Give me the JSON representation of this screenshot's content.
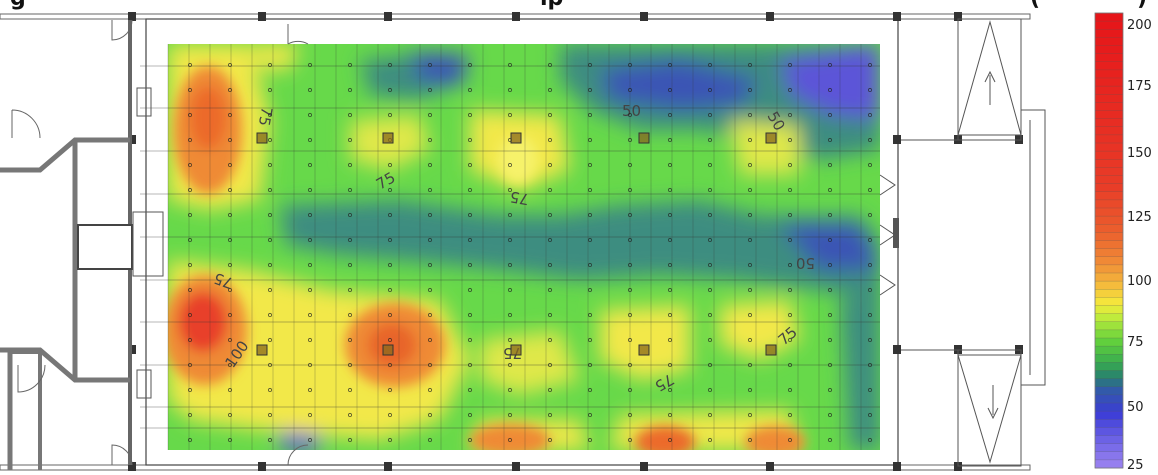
{
  "title": {
    "left_fragment": "g",
    "mid_fragment": "ip",
    "right_fragment": "(",
    "end_fragment": ")"
  },
  "legend": {
    "ticks": [
      "200",
      "175",
      "150",
      "125",
      "100",
      "75",
      "50",
      "25"
    ],
    "min": 25,
    "max": 200
  },
  "contour_labels": [
    {
      "id": "c75-a",
      "text": "75"
    },
    {
      "id": "c75-b",
      "text": "75"
    },
    {
      "id": "c75-c",
      "text": "75"
    },
    {
      "id": "c75-d",
      "text": "75"
    },
    {
      "id": "c75-e",
      "text": "75"
    },
    {
      "id": "c75-f",
      "text": "75"
    },
    {
      "id": "c75-g",
      "text": "75"
    },
    {
      "id": "c100",
      "text": "100"
    },
    {
      "id": "c50-a",
      "text": "50"
    },
    {
      "id": "c50-b",
      "text": "50"
    },
    {
      "id": "c50-c",
      "text": "50"
    }
  ],
  "colors": {
    "red": "#e8151c",
    "orange": "#ef7f30",
    "yellow": "#f3ee45",
    "green": "#67dc45",
    "teal": "#3a8f78",
    "blue": "#3553b8",
    "violet": "#9b86ef"
  }
}
